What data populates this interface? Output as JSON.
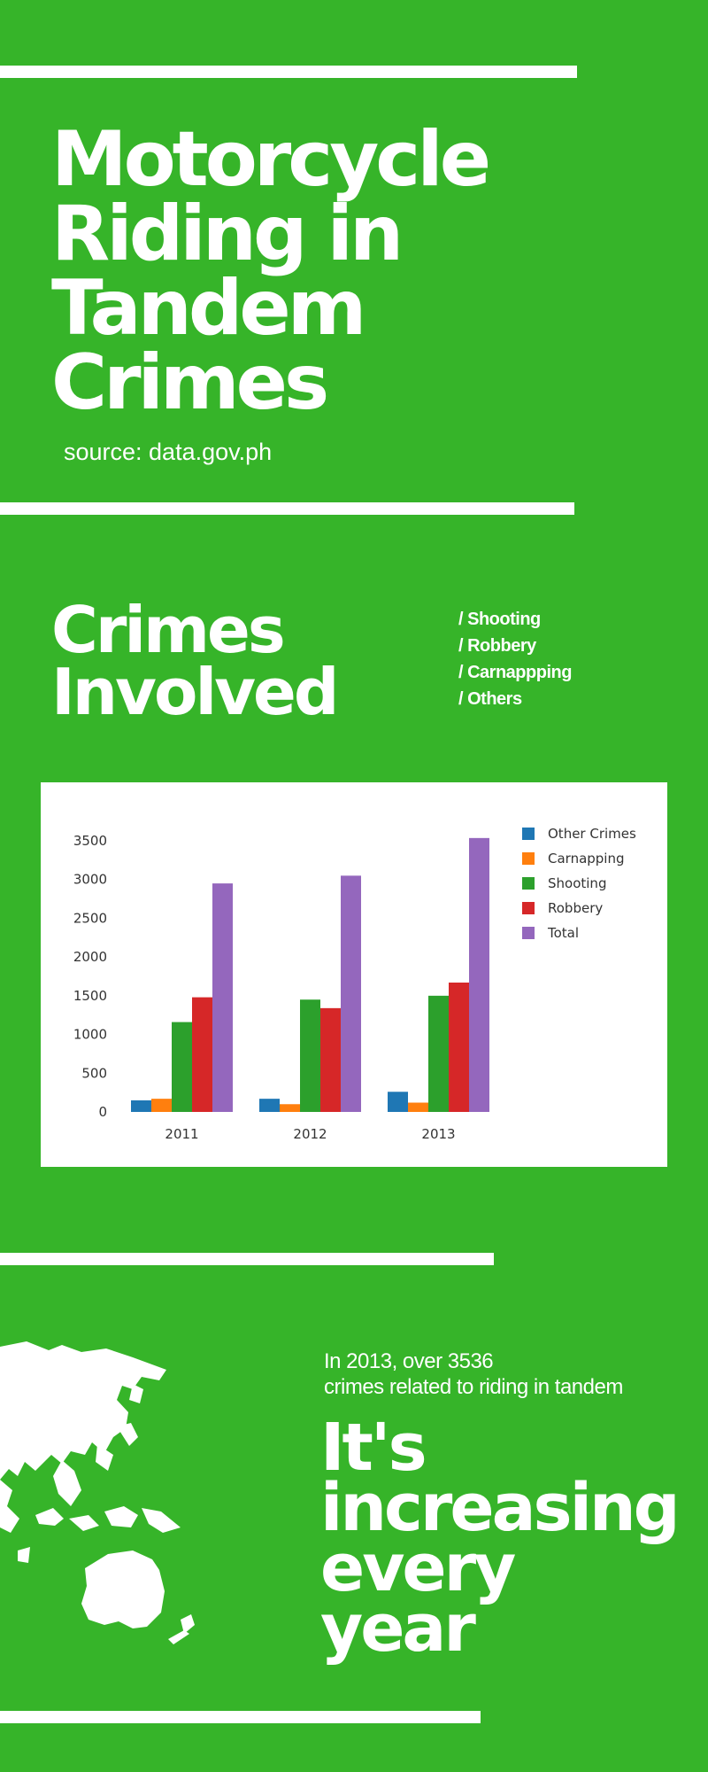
{
  "header": {
    "title_lines": [
      "Motorcycle",
      "Riding in",
      "Tandem",
      "Crimes"
    ],
    "source": "source: data.gov.ph"
  },
  "crimes_section": {
    "heading_lines": [
      "Crimes",
      "Involved"
    ],
    "list": [
      "/ Shooting",
      "/ Robbery",
      "/ Carnappping",
      "/ Others"
    ]
  },
  "chart_data": {
    "type": "bar",
    "categories": [
      "2011",
      "2012",
      "2013"
    ],
    "series": [
      {
        "name": "Other Crimes",
        "color": "#1f77b4",
        "values": [
          150,
          170,
          260
        ]
      },
      {
        "name": "Carnapping",
        "color": "#ff7f0e",
        "values": [
          170,
          100,
          120
        ]
      },
      {
        "name": "Shooting",
        "color": "#2ca02c",
        "values": [
          1160,
          1450,
          1500
        ]
      },
      {
        "name": "Robbery",
        "color": "#d62728",
        "values": [
          1480,
          1340,
          1670
        ]
      },
      {
        "name": "Total",
        "color": "#9467bd",
        "values": [
          2950,
          3050,
          3536
        ]
      }
    ],
    "ylim": [
      0,
      3500
    ],
    "yticks": [
      "0",
      "500",
      "1000",
      "1500",
      "2000",
      "2500",
      "3000",
      "3500"
    ],
    "legend": "top-right",
    "grid": false
  },
  "closing": {
    "stat_lines": [
      "In 2013, over 3536",
      "crimes related to riding in tandem"
    ],
    "headline_lines": [
      "It's",
      "increasing",
      "every",
      "year"
    ],
    "map_icon": "asia-oceania-map-icon"
  },
  "colors": {
    "background": "#36b429",
    "foreground": "#ffffff"
  }
}
